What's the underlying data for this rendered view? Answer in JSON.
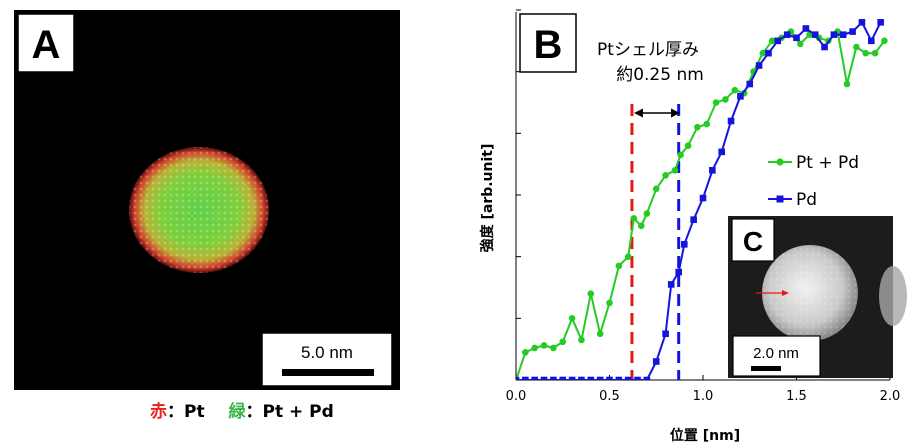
{
  "panel_a": {
    "label": "A",
    "scale_bar_text": "5.0 nm",
    "legend": [
      {
        "key": "赤",
        "sep": "：",
        "value": "Pt",
        "color": "#e8221c"
      },
      {
        "key": "緑",
        "sep": "：",
        "value": "Pt + Pd",
        "color": "#39b54a"
      }
    ]
  },
  "panel_b": {
    "label": "B",
    "annotation_line1": "Ptシェル厚み",
    "annotation_line2": "約0.25 nm",
    "ylabel": "強度 [arb.unit]",
    "xlabel": "位置 [nm]",
    "legend": [
      {
        "name": "Pt + Pd",
        "color": "#22cc22"
      },
      {
        "name": "Pd",
        "color": "#1414dd"
      }
    ]
  },
  "panel_c": {
    "label": "C",
    "scale_bar_text": "2.0 nm"
  },
  "chart_data": {
    "type": "line",
    "xlabel": "位置 [nm]",
    "ylabel": "強度 [arb.unit]",
    "xlim": [
      0,
      2.0
    ],
    "ylim": [
      0,
      6
    ],
    "xticks": [
      "0.0",
      "0.5",
      "1.0",
      "1.5",
      "2.0"
    ],
    "grid": false,
    "legend_position": "right",
    "markers": {
      "red_dashed_line_x": 0.62,
      "blue_dashed_line_x": 0.87
    },
    "series": [
      {
        "name": "Pt + Pd",
        "color": "#22cc22",
        "marker": "circle",
        "x": [
          0.0,
          0.05,
          0.1,
          0.15,
          0.2,
          0.25,
          0.3,
          0.35,
          0.4,
          0.45,
          0.5,
          0.55,
          0.6,
          0.63,
          0.67,
          0.7,
          0.75,
          0.8,
          0.85,
          0.88,
          0.92,
          0.97,
          1.02,
          1.07,
          1.12,
          1.17,
          1.22,
          1.27,
          1.32,
          1.37,
          1.42,
          1.47,
          1.52,
          1.57,
          1.62,
          1.67,
          1.72,
          1.77,
          1.82,
          1.87,
          1.92,
          1.97
        ],
        "values": [
          0.0,
          0.45,
          0.52,
          0.56,
          0.52,
          0.62,
          1.0,
          0.65,
          1.4,
          0.75,
          1.25,
          1.85,
          2.0,
          2.62,
          2.5,
          2.7,
          3.1,
          3.32,
          3.4,
          3.65,
          3.8,
          4.1,
          4.15,
          4.5,
          4.55,
          4.7,
          4.65,
          5.0,
          5.3,
          5.5,
          5.55,
          5.65,
          5.45,
          5.6,
          5.55,
          5.5,
          5.65,
          4.8,
          5.4,
          5.3,
          5.3,
          5.5
        ]
      },
      {
        "name": "Pd",
        "color": "#1414dd",
        "marker": "square",
        "x": [
          0.0,
          0.05,
          0.1,
          0.15,
          0.2,
          0.25,
          0.3,
          0.35,
          0.4,
          0.45,
          0.5,
          0.55,
          0.6,
          0.65,
          0.7,
          0.75,
          0.8,
          0.83,
          0.87,
          0.9,
          0.95,
          1.0,
          1.05,
          1.1,
          1.15,
          1.2,
          1.25,
          1.3,
          1.35,
          1.4,
          1.45,
          1.5,
          1.55,
          1.6,
          1.65,
          1.7,
          1.75,
          1.8,
          1.85,
          1.9,
          1.95
        ],
        "values": [
          0.0,
          0.0,
          0.0,
          0.0,
          0.0,
          0.0,
          0.0,
          0.0,
          0.0,
          0.0,
          0.0,
          0.0,
          0.0,
          0.0,
          0.0,
          0.3,
          0.75,
          1.55,
          1.75,
          2.2,
          2.6,
          2.95,
          3.4,
          3.7,
          4.2,
          4.6,
          4.8,
          5.1,
          5.3,
          5.5,
          5.6,
          5.55,
          5.7,
          5.6,
          5.4,
          5.6,
          5.6,
          5.65,
          5.8,
          5.5,
          5.8
        ]
      }
    ]
  }
}
